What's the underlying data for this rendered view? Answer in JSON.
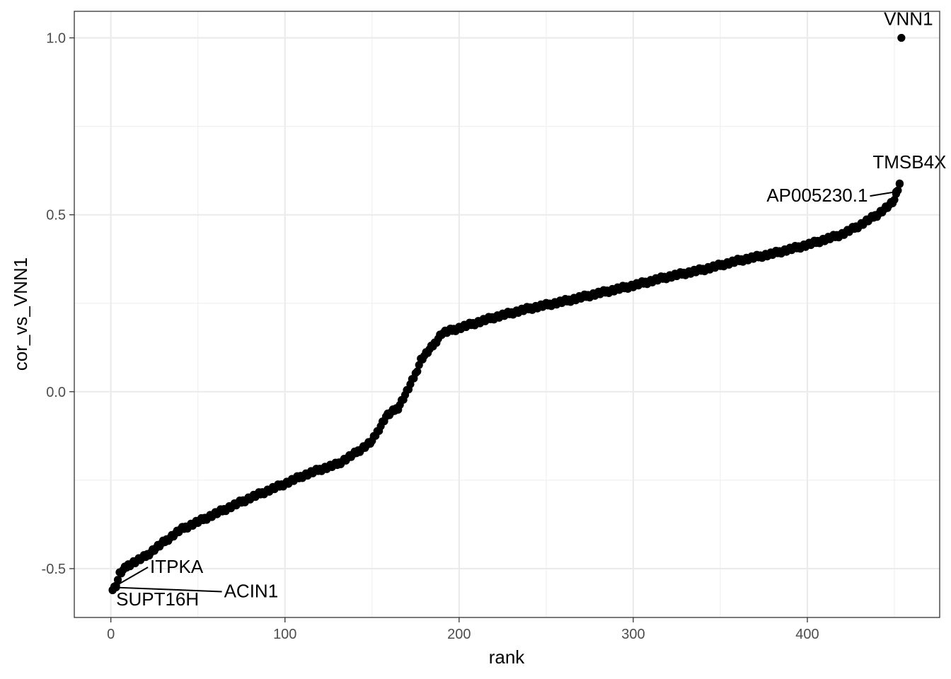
{
  "chart_data": {
    "type": "scatter",
    "title": "",
    "xlabel": "rank",
    "ylabel": "cor_vs_VNN1",
    "xlim": [
      -21,
      476
    ],
    "ylim": [
      -0.638,
      1.075
    ],
    "x_ticks": [
      0,
      100,
      200,
      300,
      400
    ],
    "x_tick_labels": [
      "0",
      "100",
      "200",
      "300",
      "400"
    ],
    "y_ticks": [
      -0.5,
      0.0,
      0.5,
      1.0
    ],
    "y_tick_labels": [
      "-0.5",
      "0.0",
      "0.5",
      "1.0"
    ],
    "grid": true,
    "point_color": "#000000",
    "n_points": 454,
    "curve_knots": [
      [
        1,
        -0.56
      ],
      [
        3,
        -0.548
      ],
      [
        5,
        -0.515
      ],
      [
        10,
        -0.49
      ],
      [
        20,
        -0.465
      ],
      [
        25,
        -0.445
      ],
      [
        40,
        -0.39
      ],
      [
        60,
        -0.345
      ],
      [
        80,
        -0.3
      ],
      [
        100,
        -0.26
      ],
      [
        110,
        -0.238
      ],
      [
        120,
        -0.22
      ],
      [
        130,
        -0.205
      ],
      [
        140,
        -0.175
      ],
      [
        150,
        -0.14
      ],
      [
        158,
        -0.07
      ],
      [
        165,
        -0.045
      ],
      [
        170,
        0.0
      ],
      [
        175,
        0.05
      ],
      [
        178,
        0.09
      ],
      [
        185,
        0.13
      ],
      [
        190,
        0.165
      ],
      [
        200,
        0.18
      ],
      [
        220,
        0.21
      ],
      [
        240,
        0.235
      ],
      [
        260,
        0.255
      ],
      [
        280,
        0.278
      ],
      [
        300,
        0.3
      ],
      [
        320,
        0.325
      ],
      [
        340,
        0.345
      ],
      [
        360,
        0.37
      ],
      [
        380,
        0.39
      ],
      [
        400,
        0.415
      ],
      [
        420,
        0.445
      ],
      [
        430,
        0.47
      ],
      [
        440,
        0.5
      ],
      [
        448,
        0.53
      ],
      [
        450,
        0.54
      ],
      [
        451,
        0.565
      ],
      [
        452,
        0.57
      ],
      [
        453,
        0.585
      ],
      [
        454,
        1.0
      ]
    ],
    "labeled_points": [
      {
        "name": "VNN1",
        "x": 454,
        "y": 1.0
      },
      {
        "name": "TMSB4X",
        "x": 453,
        "y": 0.587
      },
      {
        "name": "AP005230.1",
        "x": 451,
        "y": 0.565
      },
      {
        "name": "ITPKA",
        "x": 3,
        "y": -0.548
      },
      {
        "name": "ACIN1",
        "x": 2,
        "y": -0.553
      },
      {
        "name": "SUPT16H",
        "x": 1,
        "y": -0.56
      }
    ]
  }
}
